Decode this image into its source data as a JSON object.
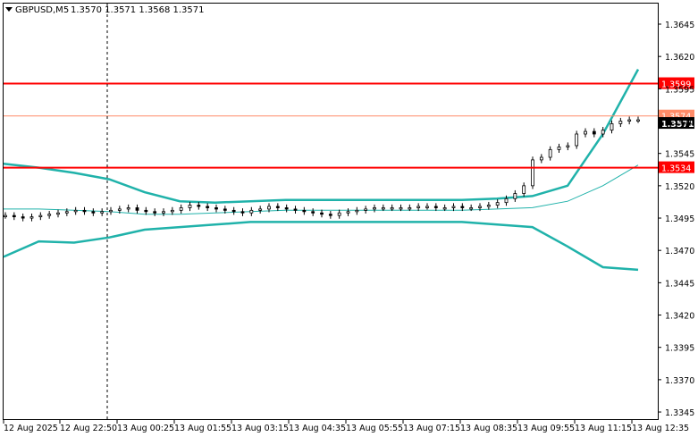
{
  "header": {
    "symbol": "GBPUSD,M5",
    "ohlc": "1.3570 1.3571 1.3568 1.3571"
  },
  "colors": {
    "background": "#ffffff",
    "grid": "#ffffff",
    "axis": "#000000",
    "bollinger": "#20b2aa",
    "level_line": "#ff0000",
    "current_price_line": "#ff8c69",
    "candle": "#000000"
  },
  "chart_data": {
    "type": "candlestick",
    "symbol": "GBPUSD",
    "timeframe": "M5",
    "y_range": [
      1.333,
      1.367
    ],
    "y_ticks": [
      "1.3645",
      "1.3620",
      "1.3595",
      "1.3570",
      "1.3545",
      "1.3520",
      "1.3495",
      "1.3470",
      "1.3445",
      "1.3420",
      "1.3395",
      "1.3370",
      "1.3345"
    ],
    "x_ticks": [
      "12 Aug 2025",
      "12 Aug 22:50",
      "13 Aug 00:25",
      "13 Aug 01:55",
      "13 Aug 03:15",
      "13 Aug 04:35",
      "13 Aug 05:55",
      "13 Aug 07:15",
      "13 Aug 08:35",
      "13 Aug 09:55",
      "13 Aug 11:15",
      "13 Aug 12:35"
    ],
    "horizontal_levels": [
      {
        "price": 1.3599,
        "label": "1.3599"
      },
      {
        "price": 1.3534,
        "label": "1.3534"
      }
    ],
    "current_price": {
      "price": 1.3571,
      "label": "1.3571",
      "behind_label": "1.3574"
    },
    "vertical_marker_time": "12 Aug 22:50",
    "bollinger": {
      "upper": [
        1.3537,
        1.3534,
        1.353,
        1.3525,
        1.3515,
        1.3508,
        1.3507,
        1.3508,
        1.3509,
        1.3509,
        1.3509,
        1.3509,
        1.3509,
        1.3509,
        1.351,
        1.3512,
        1.352,
        1.356,
        1.361
      ],
      "middle": [
        1.3502,
        1.3502,
        1.3501,
        1.35,
        1.3498,
        1.3498,
        1.3499,
        1.35,
        1.3501,
        1.3501,
        1.3501,
        1.3501,
        1.3501,
        1.3501,
        1.3502,
        1.3503,
        1.3508,
        1.352,
        1.3536
      ],
      "lower": [
        1.3465,
        1.3477,
        1.3476,
        1.348,
        1.3486,
        1.3488,
        1.349,
        1.3492,
        1.3492,
        1.3492,
        1.3492,
        1.3492,
        1.3492,
        1.3492,
        1.349,
        1.3488,
        1.3473,
        1.3457,
        1.3455
      ]
    },
    "close": [
      1.3497,
      1.3496,
      1.3495,
      1.3496,
      1.3497,
      1.3498,
      1.3499,
      1.35,
      1.3501,
      1.35,
      1.3499,
      1.35,
      1.3501,
      1.3502,
      1.3503,
      1.3501,
      1.35,
      1.3499,
      1.35,
      1.3501,
      1.3503,
      1.3505,
      1.3504,
      1.3503,
      1.3502,
      1.3501,
      1.35,
      1.3499,
      1.3501,
      1.3502,
      1.3504,
      1.3503,
      1.3502,
      1.3501,
      1.35,
      1.3499,
      1.3498,
      1.3497,
      1.3499,
      1.35,
      1.3501,
      1.3502,
      1.3503,
      1.3503,
      1.3503,
      1.3503,
      1.3503,
      1.3504,
      1.3504,
      1.3503,
      1.3503,
      1.3504,
      1.3503,
      1.3503,
      1.3504,
      1.3505,
      1.3507,
      1.351,
      1.3514,
      1.352,
      1.354,
      1.3542,
      1.3548,
      1.355,
      1.3551,
      1.356,
      1.3562,
      1.356,
      1.3563,
      1.3568,
      1.357,
      1.3571,
      1.3571
    ]
  }
}
